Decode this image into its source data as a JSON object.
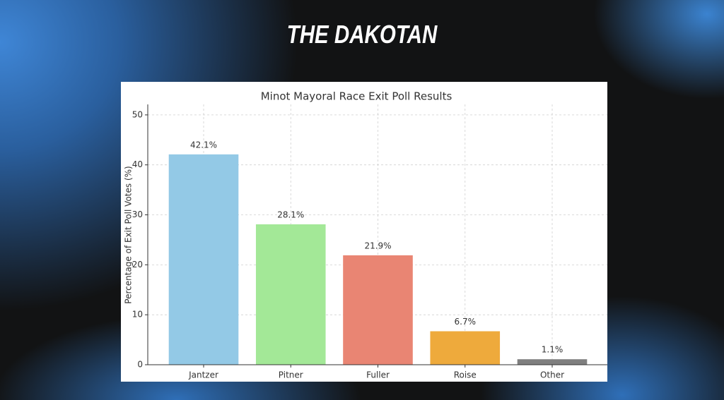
{
  "header": {
    "title": "THE DAKOTAN"
  },
  "chart_data": {
    "type": "bar",
    "title": "Minot Mayoral Race Exit Poll Results",
    "y_label": "Percentage of Exit Poll Votes (%)",
    "categories": [
      "Jantzer",
      "Pitner",
      "Fuller",
      "Roise",
      "Other"
    ],
    "values": [
      42.1,
      28.1,
      21.9,
      6.7,
      1.1
    ],
    "value_labels": [
      "42.1%",
      "28.1%",
      "21.9%",
      "6.7%",
      "1.1%"
    ],
    "colors": [
      "#93c9e6",
      "#a3e897",
      "#e98573",
      "#eeaa3c",
      "#7f7f7f"
    ],
    "ylim": [
      0,
      52.1
    ],
    "yticks": [
      0,
      10,
      20,
      30,
      40,
      50
    ],
    "grid": true
  }
}
